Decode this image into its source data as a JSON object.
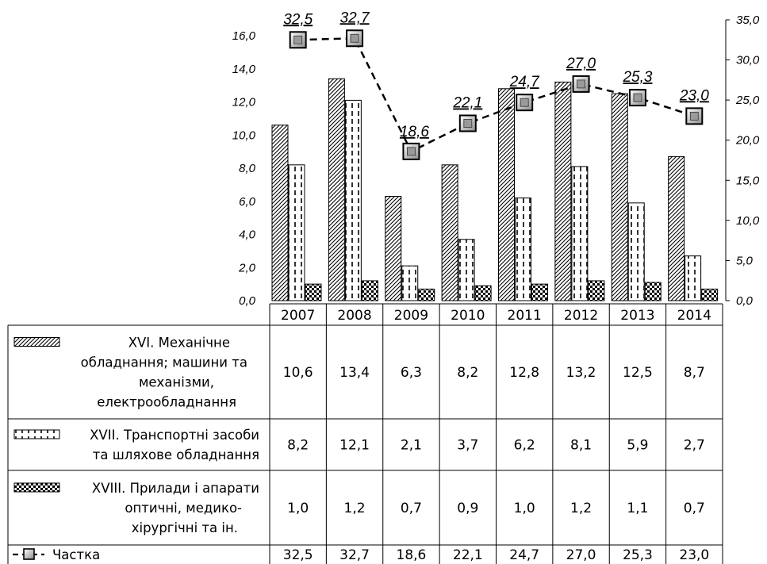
{
  "chart_data": {
    "type": "bar",
    "categories": [
      "2007",
      "2008",
      "2009",
      "2010",
      "2011",
      "2012",
      "2013",
      "2014"
    ],
    "series": [
      {
        "name": "XVI. Механічне обладнання; машини та механізми, електрообладнання",
        "name_lines": [
          "XVI. Механічне",
          "обладнання;  машини та",
          "механізми,",
          "електрообладнання"
        ],
        "values": [
          10.6,
          13.4,
          6.3,
          8.2,
          12.8,
          13.2,
          12.5,
          8.7
        ],
        "value_labels": [
          "10,6",
          "13,4",
          "6,3",
          "8,2",
          "12,8",
          "13,2",
          "12,5",
          "8,7"
        ],
        "type": "bar",
        "axis": "left",
        "pattern": "diagonal-hatch"
      },
      {
        "name": "XVII. Транспортні засоби та шляхове обладнання",
        "name_lines": [
          "XVII. Транспортні засоби",
          "та шляхове обладнання"
        ],
        "values": [
          8.2,
          12.1,
          2.1,
          3.7,
          6.2,
          8.1,
          5.9,
          2.7
        ],
        "value_labels": [
          "8,2",
          "12,1",
          "2,1",
          "3,7",
          "6,2",
          "8,1",
          "5,9",
          "2,7"
        ],
        "type": "bar",
        "axis": "left",
        "pattern": "dashed-vertical"
      },
      {
        "name": "XVIII. Прилади і апарати оптичні, медико-хірургічні та ін.",
        "name_lines": [
          "XVIII. Прилади і апарати",
          "оптичні, медико-",
          "хірургічні та ін."
        ],
        "values": [
          1.0,
          1.2,
          0.7,
          0.9,
          1.0,
          1.2,
          1.1,
          0.7
        ],
        "value_labels": [
          "1,0",
          "1,2",
          "0,7",
          "0,9",
          "1,0",
          "1,2",
          "1,1",
          "0,7"
        ],
        "type": "bar",
        "axis": "left",
        "pattern": "checker"
      },
      {
        "name": "Частка",
        "name_lines": [
          "Частка"
        ],
        "values": [
          32.5,
          32.7,
          18.6,
          22.1,
          24.7,
          27.0,
          25.3,
          23.0
        ],
        "value_labels": [
          "32,5",
          "32,7",
          "18,6",
          "22,1",
          "24,7",
          "27,0",
          "25,3",
          "23,0"
        ],
        "type": "line",
        "axis": "right",
        "line_style": "dashed",
        "marker": "square"
      }
    ],
    "y_left": {
      "ylim": [
        0,
        16
      ],
      "ticks": [
        "0,0",
        "2,0",
        "4,0",
        "6,0",
        "8,0",
        "10,0",
        "12,0",
        "14,0",
        "16,0"
      ]
    },
    "y_right": {
      "ylim": [
        0,
        35
      ],
      "ticks": [
        "0,0",
        "5,0",
        "10,0",
        "15,0",
        "20,0",
        "25,0",
        "30,0",
        "35,0"
      ]
    },
    "title": "",
    "xlabel": "",
    "ylabel": "",
    "grid": false,
    "legend": "data-table",
    "colors": {
      "ink": "#000000",
      "background": "#ffffff",
      "marker_fill": "#b8b8b8"
    }
  }
}
